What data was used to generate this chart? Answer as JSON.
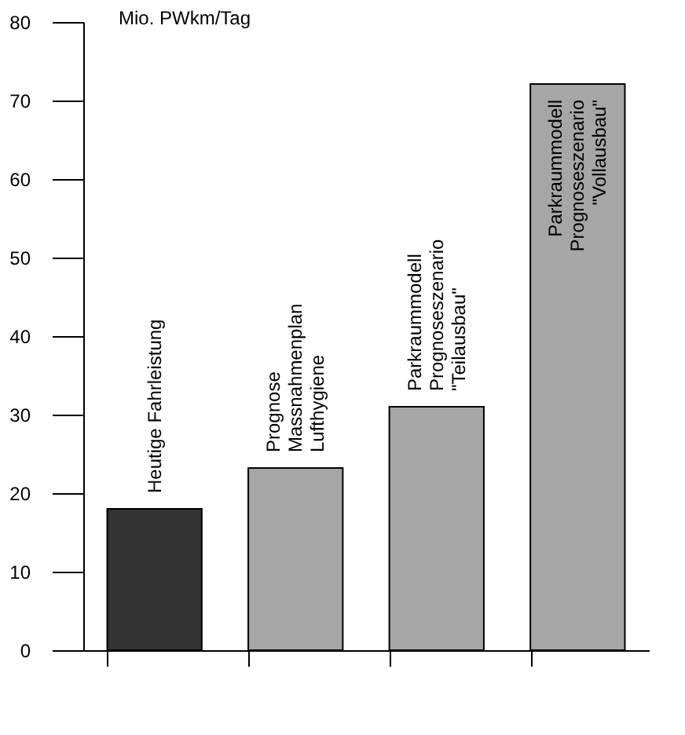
{
  "chart_data": {
    "type": "bar",
    "ylabel": "Mio. PWkm/Tag",
    "categories": [
      "Heutige Fahrleistung",
      "Prognose\nMassnahmenplan\nLufthygiene",
      "Parkraummodell\nPrognoseszenario\n\"Teilausbau\"",
      "Parkraummodell\nPrognoseszenario\n\"Vollausbau\""
    ],
    "values": [
      18,
      23.2,
      31,
      72.1
    ],
    "colors": [
      "#333333",
      "#a6a6a6",
      "#a6a6a6",
      "#a6a6a6"
    ],
    "ylim": [
      0,
      80
    ],
    "yticks": [
      0,
      10,
      20,
      30,
      40,
      50,
      60,
      70,
      80
    ],
    "grid": false,
    "tick_labels": "y"
  }
}
